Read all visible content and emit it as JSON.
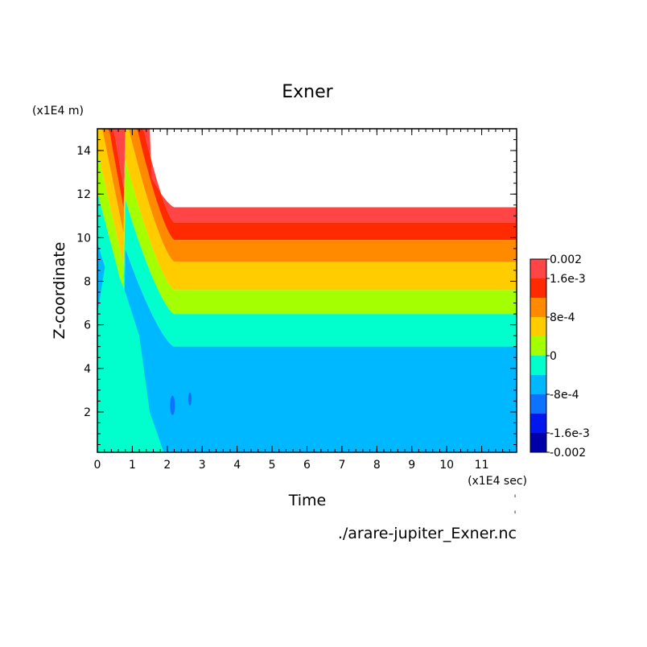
{
  "chart_data": {
    "type": "heatmap",
    "title": "Exner",
    "xlabel": "Time",
    "ylabel": "Z-coordinate",
    "x_unit": "(x1E4 sec)",
    "y_unit": "(x1E4 m)",
    "xlim": [
      0,
      12
    ],
    "ylim": [
      0.15,
      15
    ],
    "x_ticks": [
      "0",
      "1",
      "2",
      "3",
      "4",
      "5",
      "6",
      "7",
      "8",
      "9",
      "10",
      "11"
    ],
    "y_ticks": [
      "2",
      "4",
      "6",
      "8",
      "10",
      "12",
      "14"
    ],
    "colorbar": {
      "levels": [
        -0.002,
        -0.0016,
        -0.0012,
        -0.0008,
        -0.0004,
        0,
        0.0004,
        0.0008,
        0.0012,
        0.0016,
        0.002
      ],
      "colors": [
        "#0000a8",
        "#0018ee",
        "#0c72ff",
        "#00b8ff",
        "#00ffcc",
        "#a4ff00",
        "#ffcc00",
        "#ff8a00",
        "#ff2a00",
        "#ff4545"
      ],
      "labels": [
        "0.002",
        "1.6e-3",
        "8e-4",
        "0",
        "-8e-4",
        "-1.6e-3",
        "-0.002"
      ]
    },
    "equilibrium_band_tops": [
      {
        "range": "-8e-4 to -4e-4",
        "top": 5.0
      },
      {
        "range": "-4e-4 to 0",
        "top": 6.5
      },
      {
        "range": "0 to 4e-4",
        "top": 7.6
      },
      {
        "range": "4e-4 to 8e-4",
        "top": 8.9
      },
      {
        "range": "8e-4 to 1.2e-3",
        "top": 9.9
      },
      {
        "range": "1.2e-3 to 1.6e-3",
        "top": 10.7
      },
      {
        "range": "1.6e-3 to 2e-3",
        "top": 11.4
      }
    ],
    "above_top": "blank"
  },
  "footer": {
    "filename": "./arare-jupiter_Exner.nc"
  }
}
